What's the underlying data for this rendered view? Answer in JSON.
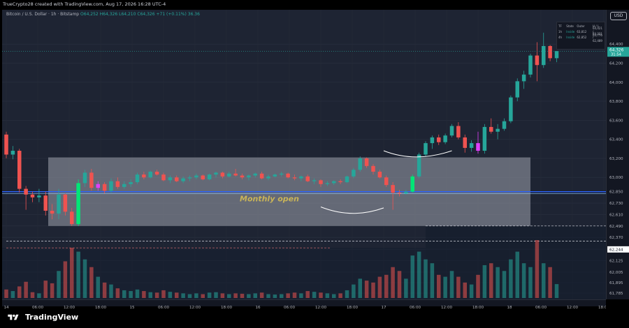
{
  "header": {
    "attribution": "TrueCrypto28 created with TradingView.com, Aug 17, 2026 16:28 UTC-4"
  },
  "legend": {
    "symbol": "Bitcoin / U.S. Dollar · 1h · Bitstamp",
    "open": "O64,252",
    "high": "H64,326",
    "low": "L64,210",
    "close": "C64,326",
    "change": "+71 (+0.11%)",
    "volume": "36.36"
  },
  "currency_button": {
    "label": "USD"
  },
  "info_table": {
    "headers": [
      "TF",
      "State",
      "Outer",
      "H / L"
    ],
    "rows": [
      [
        "1h",
        "Inside",
        "63,812",
        "64,421 / 63,776"
      ],
      [
        "4h",
        "Inside",
        "62,852",
        "63,221 / 62,489"
      ]
    ]
  },
  "footer": {
    "brand": "TradingView"
  },
  "colors": {
    "up": "#26a69a",
    "down": "#ef5350",
    "vol_up": "#26a69a",
    "vol_down": "#ef5350",
    "highlight_green": "#00e676",
    "highlight_pink": "#e040fb",
    "monthly_open_line": "#2962ff",
    "annotation_text": "#c9b458",
    "chart_bg": "#1e2433"
  },
  "chart_data": {
    "type": "candlestick",
    "title": "",
    "xlabel": "",
    "ylabel": "",
    "ylim": [
      61785,
      64570
    ],
    "grid": true,
    "y_ticks": [
      64400,
      64200,
      64000,
      63800,
      63600,
      63400,
      63200,
      63000,
      62850,
      62730,
      62610,
      62490,
      62370,
      62245,
      62125,
      62005,
      61895,
      61785
    ],
    "y_tick_labels": [
      "64,400",
      "64,200",
      "64,000",
      "63,800",
      "63,600",
      "63,400",
      "63,200",
      "63,000",
      "62,850",
      "62,730",
      "62,610",
      "62,490",
      "62,370",
      "62,245",
      "62,125",
      "62,005",
      "61,895",
      "61,785"
    ],
    "x_ticks": [
      {
        "label": "14",
        "hour": 0
      },
      {
        "label": "06:00",
        "hour": 6
      },
      {
        "label": "12:00",
        "hour": 12
      },
      {
        "label": "18:00",
        "hour": 18
      },
      {
        "label": "15",
        "hour": 24
      },
      {
        "label": "06:00",
        "hour": 30
      },
      {
        "label": "12:00",
        "hour": 36
      },
      {
        "label": "18:00",
        "hour": 42
      },
      {
        "label": "16",
        "hour": 48
      },
      {
        "label": "06:00",
        "hour": 54
      },
      {
        "label": "12:00",
        "hour": 60
      },
      {
        "label": "18:00",
        "hour": 66
      },
      {
        "label": "17",
        "hour": 72
      },
      {
        "label": "06:00",
        "hour": 78
      },
      {
        "label": "12:00",
        "hour": 84
      },
      {
        "label": "18:00",
        "hour": 90
      },
      {
        "label": "18",
        "hour": 96
      },
      {
        "label": "06:00",
        "hour": 102
      },
      {
        "label": "12:00",
        "hour": 108
      },
      {
        "label": "18:00",
        "hour": 114
      }
    ],
    "candles": [
      [
        63450,
        63480,
        63200,
        63240,
        22
      ],
      [
        63240,
        63330,
        63190,
        63280,
        18
      ],
      [
        63280,
        63300,
        62840,
        62880,
        30
      ],
      [
        62880,
        62910,
        62660,
        62820,
        42
      ],
      [
        62820,
        62850,
        62740,
        62790,
        15
      ],
      [
        62790,
        62880,
        62740,
        62810,
        12
      ],
      [
        62810,
        62850,
        62600,
        62650,
        45
      ],
      [
        62650,
        62720,
        62560,
        62620,
        38
      ],
      [
        62620,
        62880,
        62560,
        62820,
        70
      ],
      [
        62820,
        62830,
        62600,
        62640,
        95
      ],
      [
        62640,
        62680,
        62490,
        62510,
        130
      ],
      [
        62510,
        62980,
        62490,
        62940,
        120
      ],
      [
        62940,
        63080,
        62900,
        63050,
        100
      ],
      [
        63050,
        63090,
        62860,
        62890,
        80
      ],
      [
        62890,
        62960,
        62860,
        62930,
        55
      ],
      [
        62930,
        62950,
        62830,
        62860,
        40
      ],
      [
        62860,
        62990,
        62840,
        62960,
        35
      ],
      [
        62960,
        63000,
        62880,
        62900,
        25
      ],
      [
        62900,
        62960,
        62880,
        62930,
        20
      ],
      [
        62930,
        62980,
        62900,
        62950,
        18
      ],
      [
        62950,
        63050,
        62930,
        63030,
        22
      ],
      [
        63030,
        63060,
        62980,
        63000,
        18
      ],
      [
        63000,
        63070,
        62990,
        63060,
        15
      ],
      [
        63060,
        63080,
        63020,
        63030,
        14
      ],
      [
        63030,
        63050,
        62960,
        62970,
        20
      ],
      [
        62970,
        63020,
        62940,
        63000,
        16
      ],
      [
        63000,
        63020,
        62950,
        62960,
        14
      ],
      [
        62960,
        63010,
        62940,
        62990,
        12
      ],
      [
        62990,
        63020,
        62960,
        63000,
        10
      ],
      [
        63000,
        63040,
        62980,
        63020,
        12
      ],
      [
        63020,
        63030,
        62970,
        62980,
        10
      ],
      [
        62980,
        63040,
        62970,
        63030,
        14
      ],
      [
        63030,
        63060,
        63000,
        63050,
        15
      ],
      [
        63050,
        63060,
        62990,
        63010,
        12
      ],
      [
        63010,
        63060,
        63000,
        63040,
        10
      ],
      [
        63040,
        63090,
        63010,
        63020,
        12
      ],
      [
        63020,
        63040,
        62980,
        63000,
        11
      ],
      [
        63000,
        63030,
        62970,
        63020,
        10
      ],
      [
        63020,
        63050,
        63000,
        63040,
        12
      ],
      [
        63040,
        63060,
        62980,
        62990,
        14
      ],
      [
        62990,
        63030,
        62970,
        63010,
        10
      ],
      [
        63010,
        63040,
        63000,
        63030,
        9
      ],
      [
        63030,
        63060,
        63010,
        63040,
        10
      ],
      [
        63040,
        63050,
        62990,
        63000,
        12
      ],
      [
        63000,
        63030,
        62970,
        62990,
        14
      ],
      [
        62990,
        63020,
        62960,
        63010,
        12
      ],
      [
        63010,
        63030,
        62950,
        62960,
        18
      ],
      [
        62960,
        62990,
        62930,
        62970,
        16
      ],
      [
        62970,
        62980,
        62900,
        62930,
        14
      ],
      [
        62930,
        62960,
        62910,
        62940,
        12
      ],
      [
        62940,
        62970,
        62920,
        62960,
        10
      ],
      [
        62960,
        62980,
        62930,
        62950,
        12
      ],
      [
        62950,
        63020,
        62940,
        63010,
        20
      ],
      [
        63010,
        63100,
        62990,
        63080,
        35
      ],
      [
        63080,
        63220,
        63060,
        63200,
        50
      ],
      [
        63200,
        63210,
        63100,
        63120,
        45
      ],
      [
        63120,
        63140,
        63030,
        63060,
        40
      ],
      [
        63060,
        63080,
        62990,
        63000,
        55
      ],
      [
        63000,
        63020,
        62900,
        62920,
        60
      ],
      [
        62920,
        62950,
        62660,
        62840,
        80
      ],
      [
        62840,
        62870,
        62800,
        62830,
        70
      ],
      [
        62830,
        62870,
        62820,
        62850,
        50
      ],
      [
        62850,
        63030,
        62840,
        63010,
        110
      ],
      [
        63010,
        63260,
        62990,
        63240,
        120
      ],
      [
        63240,
        63380,
        63220,
        63360,
        100
      ],
      [
        63360,
        63440,
        63300,
        63420,
        90
      ],
      [
        63420,
        63450,
        63340,
        63370,
        60
      ],
      [
        63370,
        63460,
        63350,
        63440,
        55
      ],
      [
        63440,
        63560,
        63420,
        63540,
        70
      ],
      [
        63540,
        63580,
        63400,
        63420,
        55
      ],
      [
        63420,
        63450,
        63260,
        63310,
        40
      ],
      [
        63310,
        63390,
        63270,
        63360,
        35
      ],
      [
        63360,
        63480,
        63250,
        63280,
        60
      ],
      [
        63280,
        63560,
        63250,
        63530,
        85
      ],
      [
        63530,
        63620,
        63460,
        63480,
        90
      ],
      [
        63480,
        63560,
        63400,
        63510,
        80
      ],
      [
        63510,
        63620,
        63490,
        63590,
        70
      ],
      [
        63590,
        63860,
        63570,
        63840,
        100
      ],
      [
        63840,
        64040,
        63800,
        64010,
        120
      ],
      [
        64010,
        64120,
        63930,
        64080,
        90
      ],
      [
        64080,
        64300,
        64050,
        64280,
        80
      ],
      [
        64280,
        64420,
        64010,
        64180,
        150
      ],
      [
        64180,
        64520,
        64150,
        64380,
        90
      ],
      [
        64380,
        64390,
        64220,
        64252,
        80
      ],
      [
        64252,
        64326,
        64210,
        64326,
        36
      ]
    ],
    "highlighted_candles": [
      {
        "index": 11,
        "color": "green"
      },
      {
        "index": 62,
        "color": "green"
      },
      {
        "index": 14,
        "color": "pink"
      },
      {
        "index": 72,
        "color": "pink"
      }
    ],
    "first_candle_hour": 0,
    "candle_spacing_hours": 1.25,
    "monthly_open_level": 62850,
    "monthly_open_label": "Monthly open",
    "range_box": {
      "start_hour": 8,
      "end_hour": 100,
      "top": 63210,
      "bottom": 62490
    },
    "dashed_levels": [
      {
        "value": 62490,
        "start_hour": 80,
        "end_hour": 120
      },
      {
        "value": 62330,
        "start_hour": 0,
        "end_hour": 120
      },
      {
        "value": 62260,
        "start_hour": 0,
        "end_hour": 62
      }
    ],
    "current_price": {
      "value": 64326,
      "label": "64,326",
      "countdown": "31:54"
    },
    "level_tag": {
      "value": 62244,
      "label": "62,244"
    },
    "volume_max": 150
  }
}
